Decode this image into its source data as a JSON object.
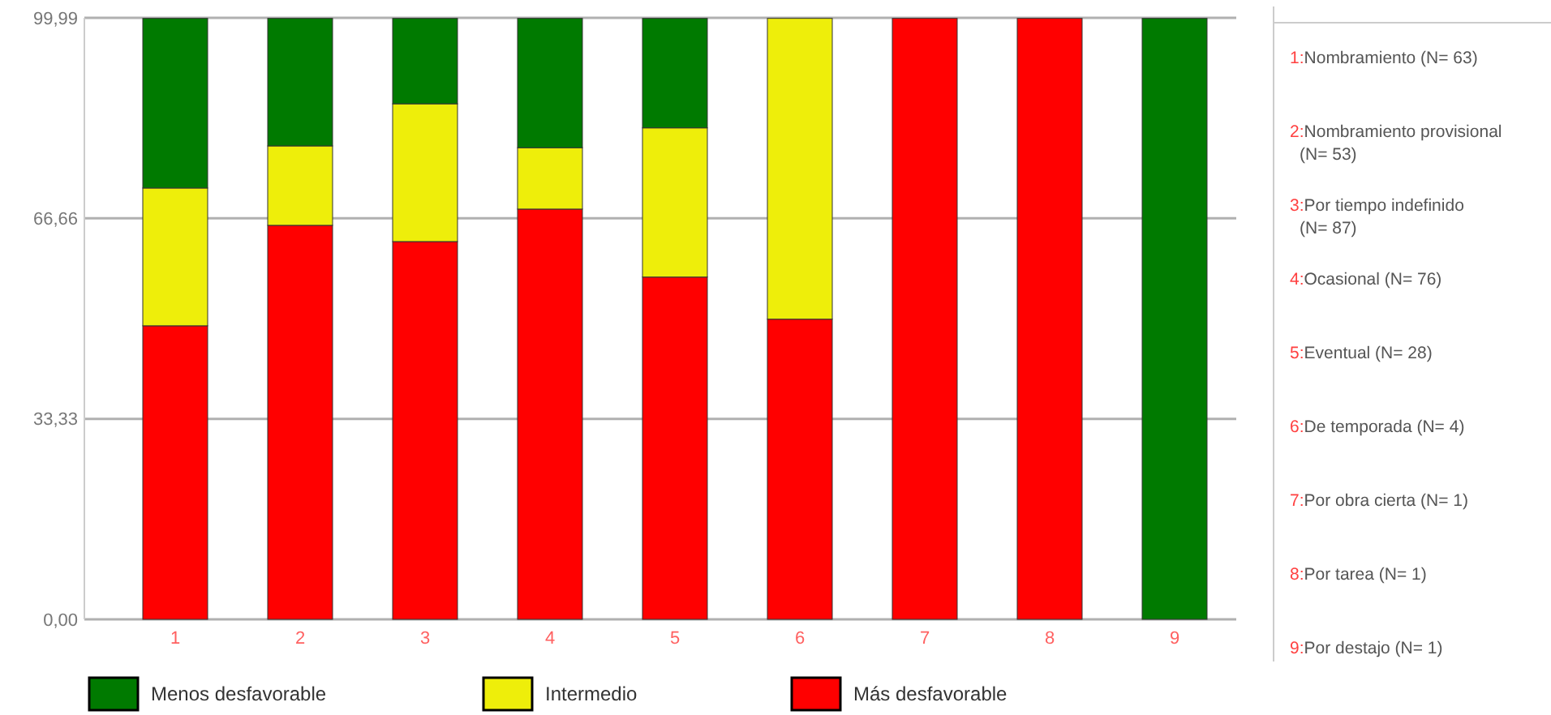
{
  "chart_data": {
    "type": "bar",
    "stacked": true,
    "categories": [
      "1",
      "2",
      "3",
      "4",
      "5",
      "6",
      "7",
      "8",
      "9"
    ],
    "series": [
      {
        "name": "Más desfavorable",
        "color": "#ff0000",
        "values": [
          48.8,
          65.5,
          62.8,
          68.2,
          56.9,
          49.9,
          99.9,
          99.9,
          0
        ]
      },
      {
        "name": "Intermedio",
        "color": "#eeee0a",
        "values": [
          22.9,
          13.2,
          22.9,
          10.2,
          24.8,
          50.0,
          0,
          0,
          0
        ]
      },
      {
        "name": "Menos desfavorable",
        "color": "#007a00",
        "values": [
          28.2,
          21.2,
          14.2,
          21.5,
          18.2,
          0,
          0,
          0,
          99.9
        ]
      }
    ],
    "ylim": [
      0,
      99.99
    ],
    "yticks": [
      {
        "value": 0,
        "label": "0,00"
      },
      {
        "value": 33.33,
        "label": "33,33"
      },
      {
        "value": 66.66,
        "label": "66,66"
      },
      {
        "value": 99.99,
        "label": "99,99"
      }
    ],
    "grid": "y",
    "legend": "bottom",
    "annotations": [
      "1:Nombramiento (N= 63)",
      "2:Nombramiento provisional (N= 53)",
      "3:Por tiempo indefinido (N= 87)",
      "4:Ocasional (N= 76)",
      "5:Eventual (N= 28)",
      "6:De temporada  (N= 4)",
      "7:Por obra cierta (N= 1)",
      "8:Por tarea (N= 1)",
      "9:Por destajo  (N= 1)"
    ]
  }
}
